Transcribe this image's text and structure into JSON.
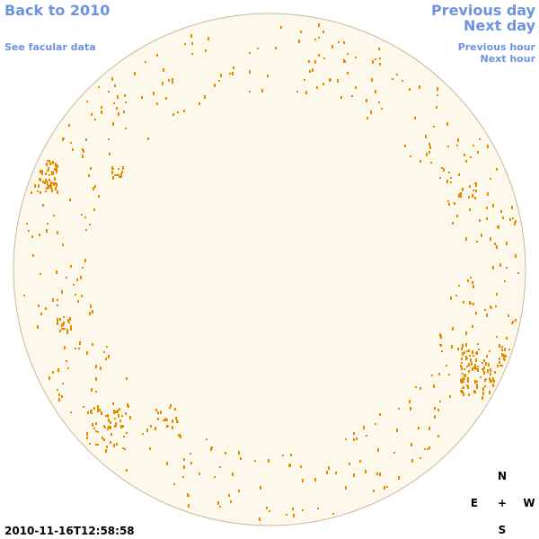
{
  "links": {
    "back": "Back to 2010",
    "facular": "See facular data",
    "previous_day": "Previous day",
    "next_day": "Next day",
    "previous_hour": "Previous hour",
    "next_hour": "Next hour"
  },
  "timestamp": "2010-11-16T12:58:58",
  "compass": {
    "north": "N",
    "east": "E",
    "center": "+",
    "west": "W",
    "south": "S"
  }
}
